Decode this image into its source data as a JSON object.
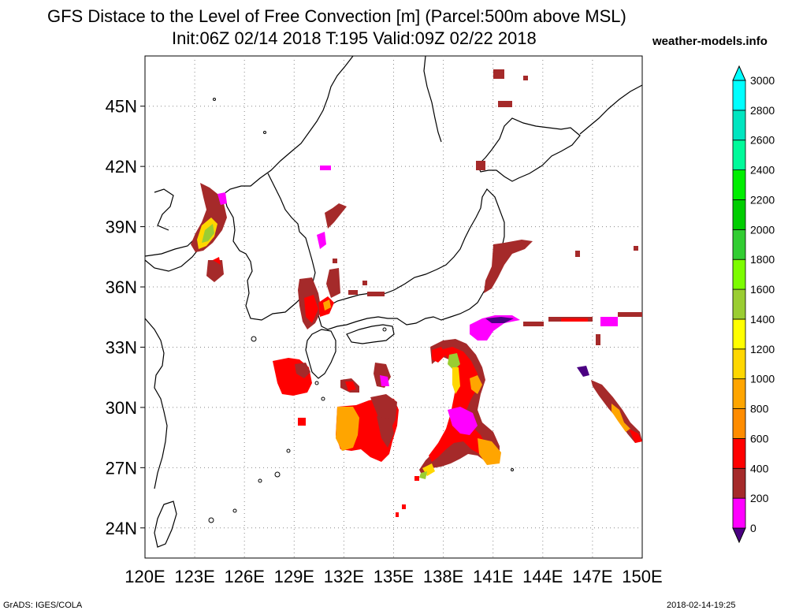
{
  "title_line1": "GFS Distace to the Level of Free Convection [m] (Parcel:500m above MSL)",
  "title_line2": "Init:06Z 02/14 2018 T:195 Valid:09Z 02/22 2018",
  "site": "weather-models.info",
  "footer_left": "GrADS: IGES/COLA",
  "footer_right": "2018-02-14-19:25",
  "map": {
    "lon_range": [
      120,
      150
    ],
    "lat_range": [
      22.5,
      47.5
    ],
    "lon_labels": [
      "120E",
      "123E",
      "126E",
      "129E",
      "132E",
      "135E",
      "138E",
      "141E",
      "144E",
      "147E",
      "150E"
    ],
    "lat_labels": [
      {
        "lat": 24,
        "label": "24N"
      },
      {
        "lat": 27,
        "label": "27N"
      },
      {
        "lat": 30,
        "label": "30N"
      },
      {
        "lat": 33,
        "label": "33N"
      },
      {
        "lat": 36,
        "label": "36N"
      },
      {
        "lat": 39,
        "label": "39N"
      },
      {
        "lat": 42,
        "label": "42N"
      },
      {
        "lat": 45,
        "label": "45N"
      }
    ]
  },
  "colorbar": {
    "levels": [
      "0",
      "200",
      "400",
      "600",
      "800",
      "1000",
      "1200",
      "1400",
      "1600",
      "1800",
      "2000",
      "2200",
      "2400",
      "2600",
      "2800",
      "3000"
    ],
    "colors": [
      "#4b0082",
      "#ff00ff",
      "#a52a2a",
      "#ff0000",
      "#ff8c00",
      "#ffa500",
      "#ffd700",
      "#ffff00",
      "#9acd32",
      "#7cfc00",
      "#32cd32",
      "#00cd00",
      "#00ee00",
      "#00fa9a",
      "#00e5c0",
      "#00ffff"
    ]
  }
}
